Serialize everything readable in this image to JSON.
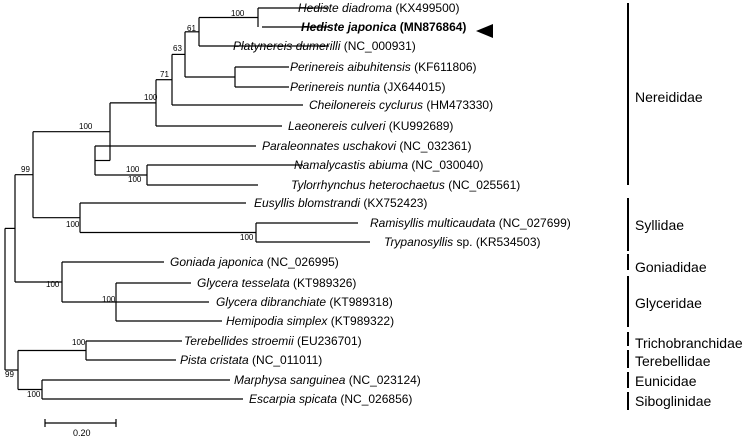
{
  "taxa": [
    {
      "genus": "Hediste diadroma",
      "acc": "(KX499500)",
      "highlight": false
    },
    {
      "genus": "Hediste japonica",
      "acc": "(MN876864)",
      "highlight": true
    },
    {
      "genus": "Platynereis dumerilli",
      "acc": "(NC_000931)",
      "highlight": false
    },
    {
      "genus": "Perinereis aibuhitensis",
      "acc": "(KF611806)",
      "highlight": false
    },
    {
      "genus": "Perinereis nuntia",
      "acc": "(JX644015)",
      "highlight": false
    },
    {
      "genus": "Cheilonereis cyclurus",
      "acc": "(HM473330)",
      "highlight": false
    },
    {
      "genus": "Laeonereis culveri",
      "acc": "(KU992689)",
      "highlight": false
    },
    {
      "genus": "Paraleonnates uschakovi",
      "acc": "(NC_032361)",
      "highlight": false
    },
    {
      "genus": "Namalycastis abiuma",
      "acc": "(NC_030040)",
      "highlight": false
    },
    {
      "genus": "Tylorrhynchus heterochaetus",
      "acc": "(NC_025561)",
      "highlight": false
    },
    {
      "genus": "Eusyllis blomstrandi",
      "acc": "(KX752423)",
      "highlight": false
    },
    {
      "genus": "Ramisyllis multicaudata",
      "acc": "(NC_027699)",
      "highlight": false
    },
    {
      "genus": "Trypanosyllis",
      "sp": "sp.",
      "acc": "(KR534503)",
      "highlight": false
    },
    {
      "genus": "Goniada japonica",
      "acc": "(NC_026995)",
      "highlight": false
    },
    {
      "genus": "Glycera tesselata",
      "acc": "(KT989326)",
      "highlight": false
    },
    {
      "genus": "Glycera dibranchiate",
      "acc": "(KT989318)",
      "highlight": false
    },
    {
      "genus": "Hemipodia simplex",
      "acc": "(KT989322)",
      "highlight": false
    },
    {
      "genus": "Terebellides stroemii",
      "acc": "(EU236701)",
      "highlight": false
    },
    {
      "genus": "Pista cristata",
      "acc": "(NC_011011)",
      "highlight": false
    },
    {
      "genus": "Marphysa sanguinea",
      "acc": "(NC_023124)",
      "highlight": false
    },
    {
      "genus": "Escarpia spicata",
      "acc": "(NC_026856)",
      "highlight": false
    }
  ],
  "support_values": [
    "100",
    "61",
    "63",
    "71",
    "100",
    "100",
    "100",
    "100",
    "99",
    "100",
    "100",
    "100",
    "100",
    "100",
    "99",
    "100"
  ],
  "families": [
    "Nereididae",
    "Syllidae",
    "Goniadidae",
    "Glyceridae",
    "Trichobranchidae",
    "Terebellidae",
    "Eunicidae",
    "Siboglinidae"
  ],
  "scale": {
    "label": "0.20",
    "value": 0.2
  },
  "marker": "arrowhead-pointing-left"
}
